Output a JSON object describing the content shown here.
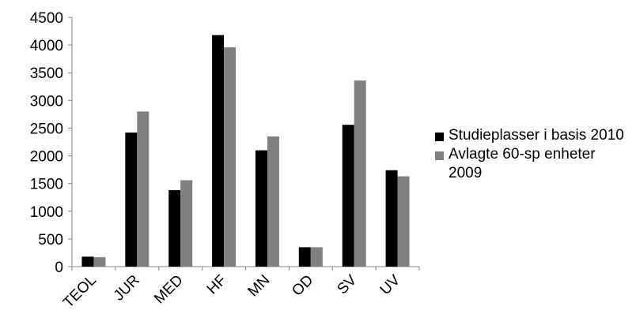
{
  "chart_data": {
    "type": "bar",
    "categories": [
      "TEOL",
      "JUR",
      "MED",
      "HF",
      "MN",
      "OD",
      "SV",
      "UV"
    ],
    "series": [
      {
        "name": "Studieplasser i basis 2010",
        "values": [
          180,
          2420,
          1380,
          4180,
          2100,
          350,
          2560,
          1740
        ],
        "color": "#000000"
      },
      {
        "name": "Avlagte 60-sp enheter 2009",
        "values": [
          170,
          2800,
          1560,
          3960,
          2350,
          350,
          3360,
          1630
        ],
        "color": "#808080"
      }
    ],
    "y_ticks": [
      "0",
      "500",
      "1000",
      "1500",
      "2000",
      "2500",
      "3000",
      "3500",
      "4000",
      "4500"
    ],
    "ylim": [
      0,
      4500
    ],
    "grid": false,
    "legend_position": "right"
  }
}
